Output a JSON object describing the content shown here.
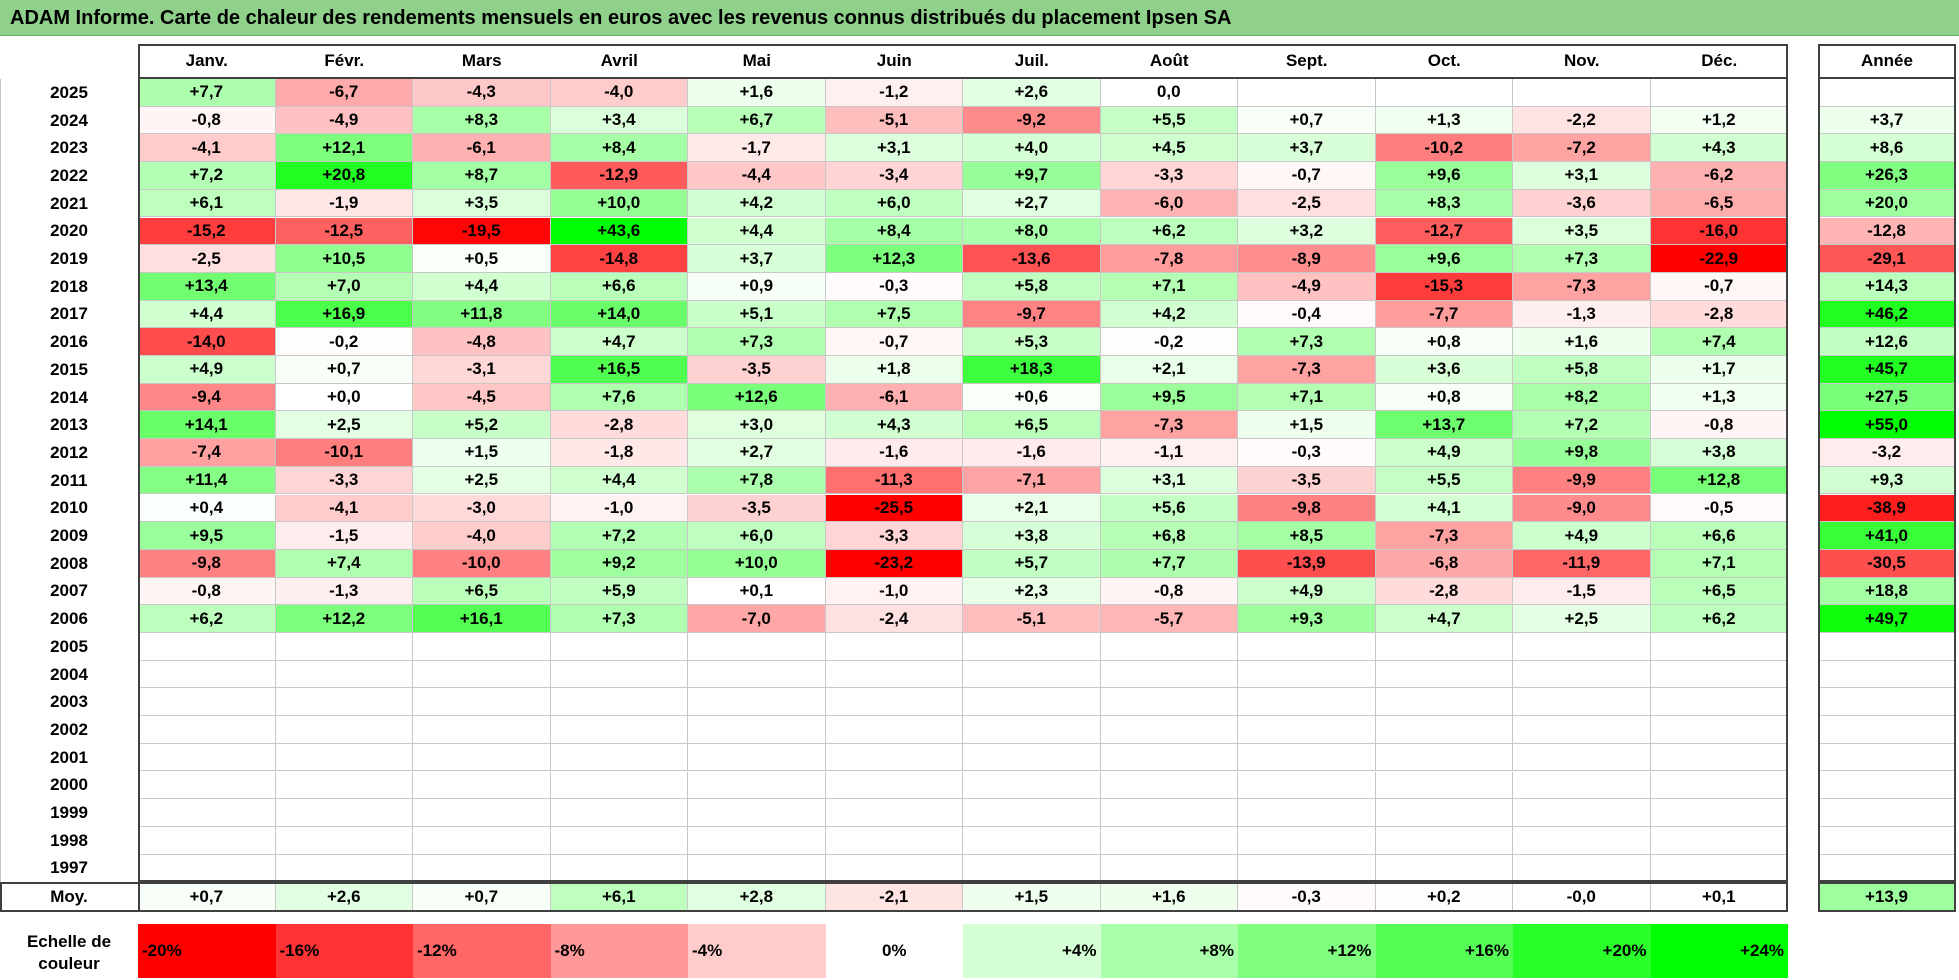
{
  "title": "ADAM Informe. Carte de chaleur des rendements mensuels en euros avec les revenus connus distribués du placement Ipsen SA",
  "colors": {
    "title_bg": "#8fd18a",
    "negative": "#ff0000",
    "positive": "#00ff00",
    "neutral": "#ffffff"
  },
  "chart_data": {
    "type": "heatmap",
    "title": "ADAM Informe. Carte de chaleur des rendements mensuels en euros avec les revenus connus distribués du placement Ipsen SA",
    "columns": [
      "Janv.",
      "Févr.",
      "Mars",
      "Avril",
      "Mai",
      "Juin",
      "Juil.",
      "Août",
      "Sept.",
      "Oct.",
      "Nov.",
      "Déc."
    ],
    "year_header": "Année",
    "rows": [
      {
        "year": "2025",
        "values": [
          "+7,7",
          "-6,7",
          "-4,3",
          "-4,0",
          "+1,6",
          "-1,2",
          "+2,6",
          "0,0",
          "",
          "",
          "",
          ""
        ],
        "annual": ""
      },
      {
        "year": "2024",
        "values": [
          "-0,8",
          "-4,9",
          "+8,3",
          "+3,4",
          "+6,7",
          "-5,1",
          "-9,2",
          "+5,5",
          "+0,7",
          "+1,3",
          "-2,2",
          "+1,2"
        ],
        "annual": "+3,7"
      },
      {
        "year": "2023",
        "values": [
          "-4,1",
          "+12,1",
          "-6,1",
          "+8,4",
          "-1,7",
          "+3,1",
          "+4,0",
          "+4,5",
          "+3,7",
          "-10,2",
          "-7,2",
          "+4,3"
        ],
        "annual": "+8,6"
      },
      {
        "year": "2022",
        "values": [
          "+7,2",
          "+20,8",
          "+8,7",
          "-12,9",
          "-4,4",
          "-3,4",
          "+9,7",
          "-3,3",
          "-0,7",
          "+9,6",
          "+3,1",
          "-6,2"
        ],
        "annual": "+26,3"
      },
      {
        "year": "2021",
        "values": [
          "+6,1",
          "-1,9",
          "+3,5",
          "+10,0",
          "+4,2",
          "+6,0",
          "+2,7",
          "-6,0",
          "-2,5",
          "+8,3",
          "-3,6",
          "-6,5"
        ],
        "annual": "+20,0"
      },
      {
        "year": "2020",
        "values": [
          "-15,2",
          "-12,5",
          "-19,5",
          "+43,6",
          "+4,4",
          "+8,4",
          "+8,0",
          "+6,2",
          "+3,2",
          "-12,7",
          "+3,5",
          "-16,0"
        ],
        "annual": "-12,8"
      },
      {
        "year": "2019",
        "values": [
          "-2,5",
          "+10,5",
          "+0,5",
          "-14,8",
          "+3,7",
          "+12,3",
          "-13,6",
          "-7,8",
          "-8,9",
          "+9,6",
          "+7,3",
          "-22,9"
        ],
        "annual": "-29,1"
      },
      {
        "year": "2018",
        "values": [
          "+13,4",
          "+7,0",
          "+4,4",
          "+6,6",
          "+0,9",
          "-0,3",
          "+5,8",
          "+7,1",
          "-4,9",
          "-15,3",
          "-7,3",
          "-0,7"
        ],
        "annual": "+14,3"
      },
      {
        "year": "2017",
        "values": [
          "+4,4",
          "+16,9",
          "+11,8",
          "+14,0",
          "+5,1",
          "+7,5",
          "-9,7",
          "+4,2",
          "-0,4",
          "-7,7",
          "-1,3",
          "-2,8"
        ],
        "annual": "+46,2"
      },
      {
        "year": "2016",
        "values": [
          "-14,0",
          "-0,2",
          "-4,8",
          "+4,7",
          "+7,3",
          "-0,7",
          "+5,3",
          "-0,2",
          "+7,3",
          "+0,8",
          "+1,6",
          "+7,4"
        ],
        "annual": "+12,6"
      },
      {
        "year": "2015",
        "values": [
          "+4,9",
          "+0,7",
          "-3,1",
          "+16,5",
          "-3,5",
          "+1,8",
          "+18,3",
          "+2,1",
          "-7,3",
          "+3,6",
          "+5,8",
          "+1,7"
        ],
        "annual": "+45,7"
      },
      {
        "year": "2014",
        "values": [
          "-9,4",
          "+0,0",
          "-4,5",
          "+7,6",
          "+12,6",
          "-6,1",
          "+0,6",
          "+9,5",
          "+7,1",
          "+0,8",
          "+8,2",
          "+1,3"
        ],
        "annual": "+27,5"
      },
      {
        "year": "2013",
        "values": [
          "+14,1",
          "+2,5",
          "+5,2",
          "-2,8",
          "+3,0",
          "+4,3",
          "+6,5",
          "-7,3",
          "+1,5",
          "+13,7",
          "+7,2",
          "-0,8"
        ],
        "annual": "+55,0"
      },
      {
        "year": "2012",
        "values": [
          "-7,4",
          "-10,1",
          "+1,5",
          "-1,8",
          "+2,7",
          "-1,6",
          "-1,6",
          "-1,1",
          "-0,3",
          "+4,9",
          "+9,8",
          "+3,8"
        ],
        "annual": "-3,2"
      },
      {
        "year": "2011",
        "values": [
          "+11,4",
          "-3,3",
          "+2,5",
          "+4,4",
          "+7,8",
          "-11,3",
          "-7,1",
          "+3,1",
          "-3,5",
          "+5,5",
          "-9,9",
          "+12,8"
        ],
        "annual": "+9,3"
      },
      {
        "year": "2010",
        "values": [
          "+0,4",
          "-4,1",
          "-3,0",
          "-1,0",
          "-3,5",
          "-25,5",
          "+2,1",
          "+5,6",
          "-9,8",
          "+4,1",
          "-9,0",
          "-0,5"
        ],
        "annual": "-38,9"
      },
      {
        "year": "2009",
        "values": [
          "+9,5",
          "-1,5",
          "-4,0",
          "+7,2",
          "+6,0",
          "-3,3",
          "+3,8",
          "+6,8",
          "+8,5",
          "-7,3",
          "+4,9",
          "+6,6"
        ],
        "annual": "+41,0"
      },
      {
        "year": "2008",
        "values": [
          "-9,8",
          "+7,4",
          "-10,0",
          "+9,2",
          "+10,0",
          "-23,2",
          "+5,7",
          "+7,7",
          "-13,9",
          "-6,8",
          "-11,9",
          "+7,1"
        ],
        "annual": "-30,5"
      },
      {
        "year": "2007",
        "values": [
          "-0,8",
          "-1,3",
          "+6,5",
          "+5,9",
          "+0,1",
          "-1,0",
          "+2,3",
          "-0,8",
          "+4,9",
          "-2,8",
          "-1,5",
          "+6,5"
        ],
        "annual": "+18,8"
      },
      {
        "year": "2006",
        "values": [
          "+6,2",
          "+12,2",
          "+16,1",
          "+7,3",
          "-7,0",
          "-2,4",
          "-5,1",
          "-5,7",
          "+9,3",
          "+4,7",
          "+2,5",
          "+6,2"
        ],
        "annual": "+49,7"
      },
      {
        "year": "2005",
        "values": [
          "",
          "",
          "",
          "",
          "",
          "",
          "",
          "",
          "",
          "",
          "",
          ""
        ],
        "annual": ""
      },
      {
        "year": "2004",
        "values": [
          "",
          "",
          "",
          "",
          "",
          "",
          "",
          "",
          "",
          "",
          "",
          ""
        ],
        "annual": ""
      },
      {
        "year": "2003",
        "values": [
          "",
          "",
          "",
          "",
          "",
          "",
          "",
          "",
          "",
          "",
          "",
          ""
        ],
        "annual": ""
      },
      {
        "year": "2002",
        "values": [
          "",
          "",
          "",
          "",
          "",
          "",
          "",
          "",
          "",
          "",
          "",
          ""
        ],
        "annual": ""
      },
      {
        "year": "2001",
        "values": [
          "",
          "",
          "",
          "",
          "",
          "",
          "",
          "",
          "",
          "",
          "",
          ""
        ],
        "annual": ""
      },
      {
        "year": "2000",
        "values": [
          "",
          "",
          "",
          "",
          "",
          "",
          "",
          "",
          "",
          "",
          "",
          ""
        ],
        "annual": ""
      },
      {
        "year": "1999",
        "values": [
          "",
          "",
          "",
          "",
          "",
          "",
          "",
          "",
          "",
          "",
          "",
          ""
        ],
        "annual": ""
      },
      {
        "year": "1998",
        "values": [
          "",
          "",
          "",
          "",
          "",
          "",
          "",
          "",
          "",
          "",
          "",
          ""
        ],
        "annual": ""
      },
      {
        "year": "1997",
        "values": [
          "",
          "",
          "",
          "",
          "",
          "",
          "",
          "",
          "",
          "",
          "",
          ""
        ],
        "annual": ""
      }
    ],
    "average": {
      "label": "Moy.",
      "values": [
        "+0,7",
        "+2,6",
        "+0,7",
        "+6,1",
        "+2,8",
        "-2,1",
        "+1,5",
        "+1,6",
        "-0,3",
        "+0,2",
        "-0,0",
        "+0,1"
      ],
      "annual": "+13,9"
    },
    "scale": {
      "label": "Echelle de couleur",
      "stops": [
        {
          "label": "-20%",
          "value": -20
        },
        {
          "label": "-16%",
          "value": -16
        },
        {
          "label": "-12%",
          "value": -12
        },
        {
          "label": "-8%",
          "value": -8
        },
        {
          "label": "-4%",
          "value": -4
        },
        {
          "label": "0%",
          "value": 0
        },
        {
          "label": "+4%",
          "value": 4
        },
        {
          "label": "+8%",
          "value": 8
        },
        {
          "label": "+12%",
          "value": 12
        },
        {
          "label": "+16%",
          "value": 16
        },
        {
          "label": "+20%",
          "value": 20
        },
        {
          "label": "+24%",
          "value": 24
        }
      ]
    }
  }
}
